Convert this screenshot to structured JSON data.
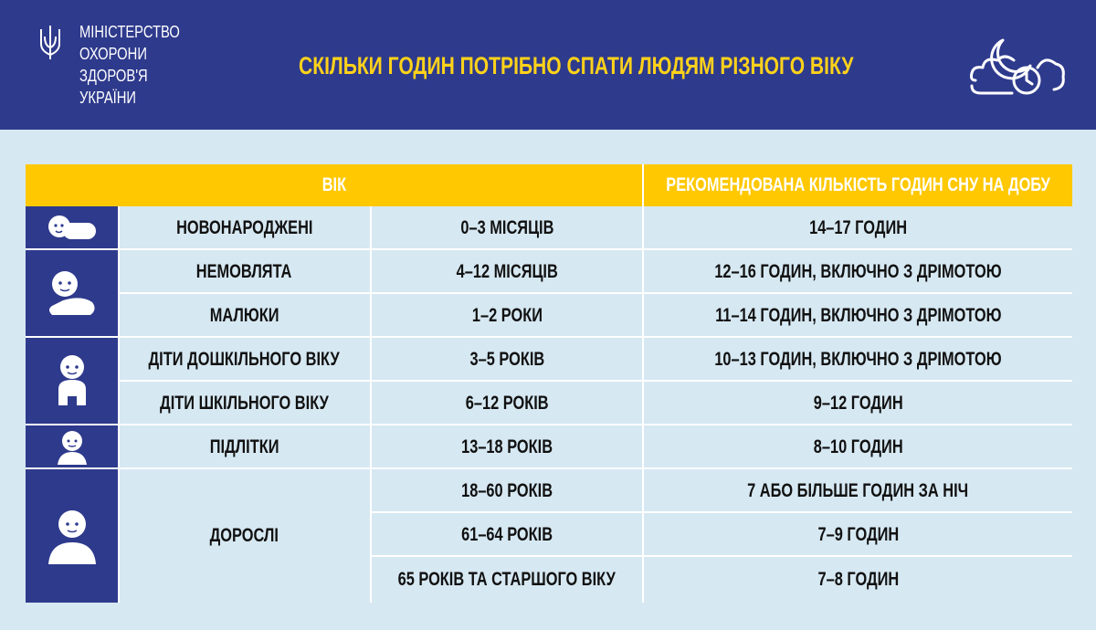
{
  "header": {
    "ministry_lines": [
      "МІНІСТЕРСТВО",
      "ОХОРОНИ",
      "ЗДОРОВ'Я",
      "УКРАЇНИ"
    ],
    "title": "СКІЛЬКИ ГОДИН ПОТРІБНО СПАТИ ЛЮДЯМ РІЗНОГО ВІКУ"
  },
  "colors": {
    "navy": "#2e3a8c",
    "yellow": "#ffc800",
    "light_blue": "#d6e8f2"
  },
  "table": {
    "headers": {
      "age": "ВІК",
      "hours": "РЕКОМЕНДОВАНА КІЛЬКІСТЬ ГОДИН СНУ НА ДОБУ"
    },
    "rows": [
      {
        "group": "НОВОНАРОДЖЕНІ",
        "age": "0–3 МІСЯЦІВ",
        "hours": "14–17 ГОДИН"
      },
      {
        "group": "НЕМОВЛЯТА",
        "age": "4–12 МІСЯЦІВ",
        "hours": "12–16 ГОДИН, ВКЛЮЧНО З  ДРІМОТОЮ"
      },
      {
        "group": "МАЛЮКИ",
        "age": "1–2 РОКИ",
        "hours": "11–14 ГОДИН, ВКЛЮЧНО З  ДРІМОТОЮ"
      },
      {
        "group": "ДІТИ ДОШКІЛЬНОГО ВІКУ",
        "age": "3–5 РОКІВ",
        "hours": "10–13 ГОДИН, ВКЛЮЧНО З  ДРІМОТОЮ"
      },
      {
        "group": "ДІТИ ШКІЛЬНОГО ВІКУ",
        "age": "6–12 РОКІВ",
        "hours": "9–12 ГОДИН"
      },
      {
        "group": "ПІДЛІТКИ",
        "age": "13–18 РОКІВ",
        "hours": "8–10 ГОДИН"
      },
      {
        "group": "ДОРОСЛІ",
        "age": "18–60 РОКІВ",
        "hours": "7 АБО БІЛЬШЕ ГОДИН ЗА НІЧ"
      },
      {
        "group": "",
        "age": "61–64 РОКІВ",
        "hours": "7–9 ГОДИН"
      },
      {
        "group": "",
        "age": "65 РОКІВ ТА СТАРШОГО ВІКУ",
        "hours": "7–8 ГОДИН"
      }
    ],
    "icons": [
      "newborn-icon",
      "baby-icon",
      "child-icon",
      "teen-icon",
      "adult-icon"
    ]
  }
}
